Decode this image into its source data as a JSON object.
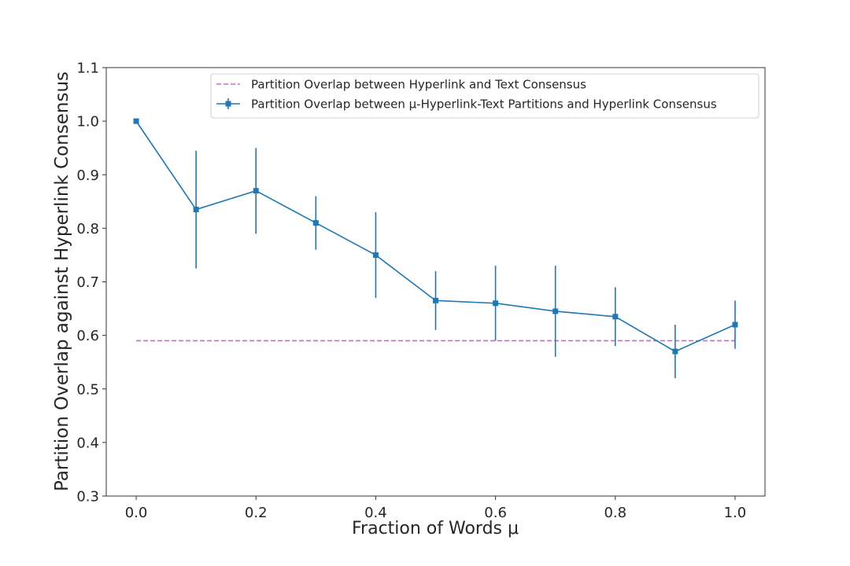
{
  "chart_data": {
    "type": "line",
    "title": "",
    "xlabel": "Fraction of Words μ",
    "ylabel": "Partition Overlap against Hyperlink Consensus",
    "xlim": [
      -0.05,
      1.05
    ],
    "ylim": [
      0.3,
      1.1
    ],
    "xticks": [
      0.0,
      0.2,
      0.4,
      0.6,
      0.8,
      1.0
    ],
    "xtick_labels": [
      "0.0",
      "0.2",
      "0.4",
      "0.6",
      "0.8",
      "1.0"
    ],
    "yticks": [
      0.3,
      0.4,
      0.5,
      0.6,
      0.7,
      0.8,
      0.9,
      1.0,
      1.1
    ],
    "ytick_labels": [
      "0.3",
      "0.4",
      "0.5",
      "0.6",
      "0.7",
      "0.8",
      "0.9",
      "1.0",
      "1.1"
    ],
    "grid": false,
    "legend_position": "top-right",
    "series": [
      {
        "name": "Partition Overlap between Hyperlink and Text Consensus",
        "kind": "dashed-line",
        "color": "#c86bc8",
        "x": [
          0.0,
          1.0
        ],
        "y": [
          0.59,
          0.59
        ]
      },
      {
        "name": "Partition Overlap between μ-Hyperlink-Text Partitions and Hyperlink Consensus",
        "kind": "errorbar",
        "color": "#1f77b4",
        "marker": "square",
        "x": [
          0.0,
          0.1,
          0.2,
          0.3,
          0.4,
          0.5,
          0.6,
          0.7,
          0.8,
          0.9,
          1.0
        ],
        "y": [
          1.0,
          0.835,
          0.87,
          0.81,
          0.75,
          0.665,
          0.66,
          0.645,
          0.635,
          0.57,
          0.62
        ],
        "yerr": [
          0.0,
          0.11,
          0.08,
          0.05,
          0.08,
          0.055,
          0.07,
          0.085,
          0.055,
          0.05,
          0.045
        ]
      }
    ]
  }
}
